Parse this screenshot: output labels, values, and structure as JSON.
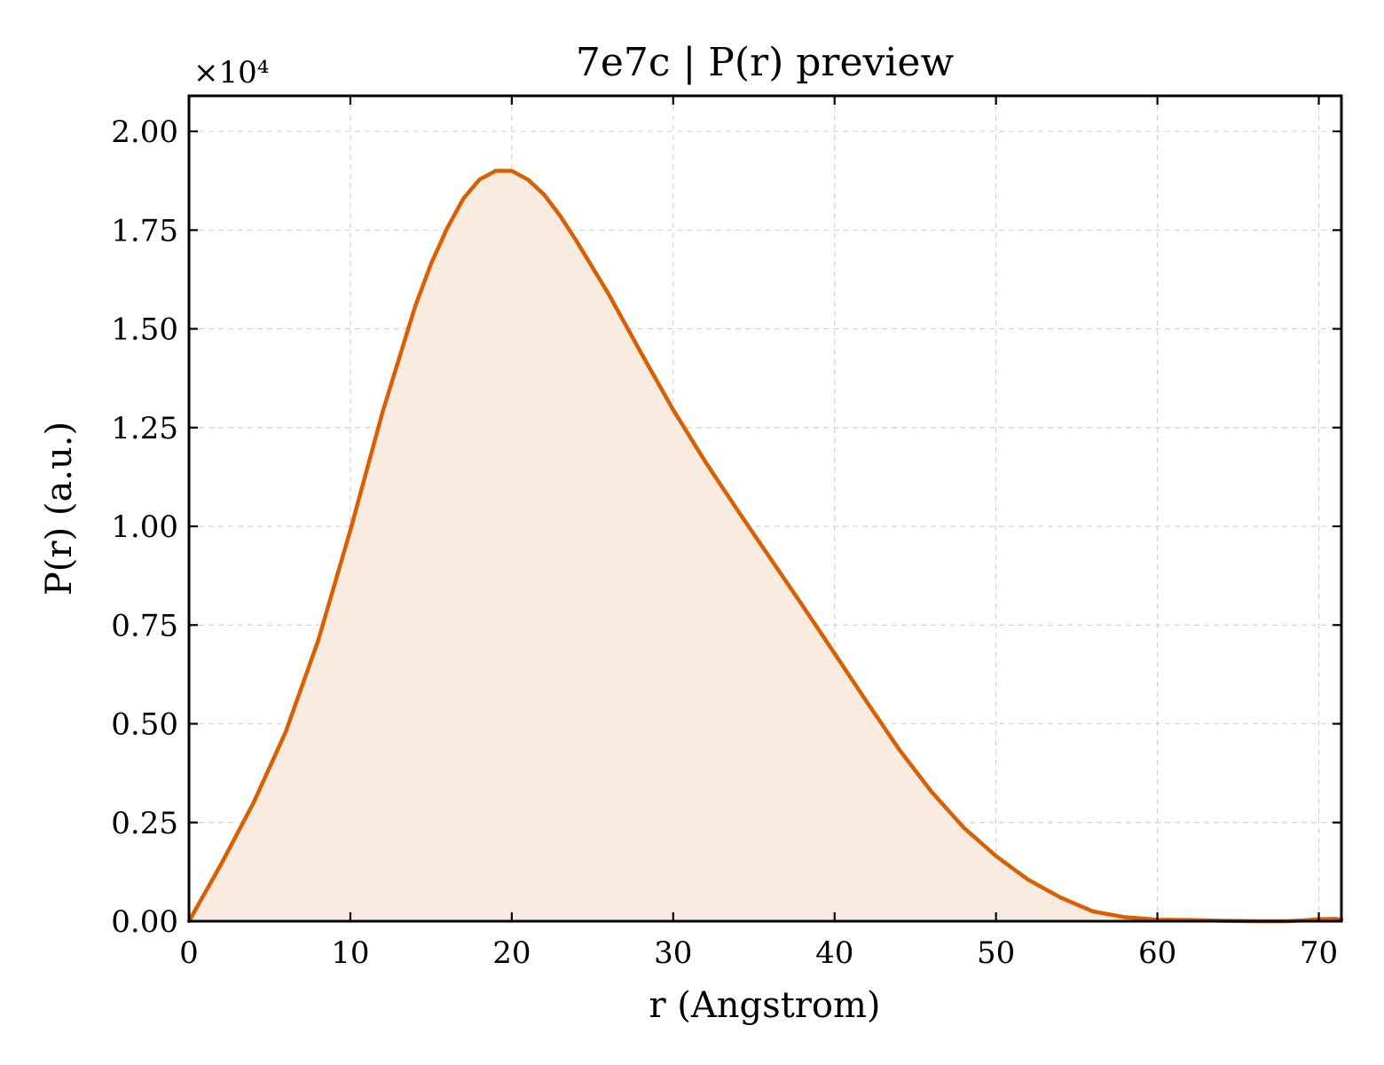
{
  "chart_data": {
    "type": "area",
    "title": "7e7c | P(r) preview",
    "xlabel": "r (Angstrom)",
    "ylabel": "P(r) (a.u.)",
    "y_offset_label": "×10⁴",
    "xlim": [
      0,
      71.4
    ],
    "ylim": [
      0,
      2.09
    ],
    "x_ticks": [
      0,
      10,
      20,
      30,
      40,
      50,
      60,
      70
    ],
    "x_tick_labels": [
      "0",
      "10",
      "20",
      "30",
      "40",
      "50",
      "60",
      "70"
    ],
    "y_ticks": [
      0,
      0.25,
      0.5,
      0.75,
      1.0,
      1.25,
      1.5,
      1.75,
      2.0
    ],
    "y_tick_labels": [
      "0.00",
      "0.25",
      "0.50",
      "0.75",
      "1.00",
      "1.25",
      "1.50",
      "1.75",
      "2.00"
    ],
    "grid": true,
    "line_color": "#d95f02",
    "fill_color": "#f9ebe0",
    "series": [
      {
        "x": [
          0,
          2,
          4,
          6,
          8,
          10,
          12,
          14,
          15,
          16,
          17,
          18,
          19,
          20,
          21,
          22,
          23,
          24,
          26,
          28,
          30,
          32,
          34,
          36,
          38,
          40,
          42,
          44,
          46,
          48,
          50,
          52,
          54,
          56,
          58,
          60,
          62,
          64,
          66,
          68,
          69,
          70,
          71,
          71.4
        ],
        "y": [
          0.0,
          0.145,
          0.3,
          0.48,
          0.71,
          0.99,
          1.29,
          1.555,
          1.665,
          1.755,
          1.83,
          1.878,
          1.9,
          1.9,
          1.878,
          1.84,
          1.786,
          1.723,
          1.588,
          1.44,
          1.295,
          1.163,
          1.04,
          0.92,
          0.8,
          0.678,
          0.555,
          0.435,
          0.328,
          0.237,
          0.165,
          0.105,
          0.06,
          0.025,
          0.01,
          0.004,
          0.003,
          0.001,
          0.0,
          0.0,
          0.002,
          0.005,
          0.006,
          0.004
        ]
      }
    ]
  }
}
